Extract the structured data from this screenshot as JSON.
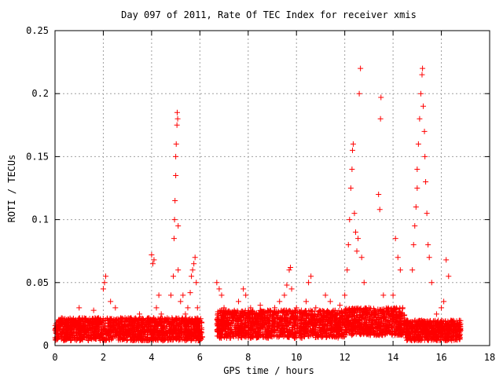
{
  "chart_data": {
    "type": "scatter",
    "title": "Day 097 of 2011, Rate Of TEC Index for receiver xmis",
    "xlabel": "GPS time / hours",
    "ylabel": "ROTI / TECUs",
    "xlim": [
      0,
      18
    ],
    "ylim": [
      0,
      0.25
    ],
    "x_ticks": [
      0,
      2,
      4,
      6,
      8,
      10,
      12,
      14,
      16,
      18
    ],
    "y_ticks": [
      0,
      0.05,
      0.1,
      0.15,
      0.2,
      0.25
    ],
    "x_tick_labels": [
      "0",
      "2",
      "4",
      "6",
      "8",
      "10",
      "12",
      "14",
      "16",
      "18"
    ],
    "y_tick_labels": [
      "0",
      "0.05",
      "0.1",
      "0.15",
      "0.2",
      "0.25"
    ],
    "grid": true,
    "marker": "+",
    "color": "#ff0000",
    "series": [
      {
        "points": [
          [
            0.1,
            0.012
          ],
          [
            0.3,
            0.01
          ],
          [
            0.5,
            0.013
          ],
          [
            0.7,
            0.011
          ],
          [
            0.9,
            0.018
          ],
          [
            1.0,
            0.03
          ],
          [
            1.2,
            0.015
          ],
          [
            1.5,
            0.02
          ],
          [
            1.6,
            0.028
          ],
          [
            1.8,
            0.022
          ],
          [
            1.9,
            0.012
          ],
          [
            2.0,
            0.045
          ],
          [
            2.05,
            0.05
          ],
          [
            2.1,
            0.055
          ],
          [
            2.2,
            0.02
          ],
          [
            2.3,
            0.035
          ],
          [
            2.5,
            0.03
          ],
          [
            2.7,
            0.015
          ],
          [
            2.9,
            0.022
          ],
          [
            3.1,
            0.012
          ],
          [
            3.3,
            0.018
          ],
          [
            3.5,
            0.025
          ],
          [
            3.7,
            0.015
          ],
          [
            3.9,
            0.02
          ],
          [
            4.0,
            0.072
          ],
          [
            4.05,
            0.065
          ],
          [
            4.1,
            0.068
          ],
          [
            4.2,
            0.03
          ],
          [
            4.3,
            0.04
          ],
          [
            4.4,
            0.025
          ],
          [
            4.6,
            0.02
          ],
          [
            4.8,
            0.04
          ],
          [
            4.9,
            0.055
          ],
          [
            4.93,
            0.085
          ],
          [
            4.95,
            0.1
          ],
          [
            4.97,
            0.115
          ],
          [
            5.0,
            0.135
          ],
          [
            5.0,
            0.15
          ],
          [
            5.02,
            0.16
          ],
          [
            5.05,
            0.175
          ],
          [
            5.06,
            0.185
          ],
          [
            5.08,
            0.18
          ],
          [
            5.1,
            0.095
          ],
          [
            5.1,
            0.06
          ],
          [
            5.2,
            0.035
          ],
          [
            5.3,
            0.04
          ],
          [
            5.4,
            0.025
          ],
          [
            5.5,
            0.03
          ],
          [
            5.6,
            0.042
          ],
          [
            5.65,
            0.055
          ],
          [
            5.7,
            0.06
          ],
          [
            5.75,
            0.065
          ],
          [
            5.8,
            0.07
          ],
          [
            5.85,
            0.05
          ],
          [
            5.9,
            0.03
          ],
          [
            6.0,
            0.02
          ],
          [
            6.7,
            0.05
          ],
          [
            6.8,
            0.045
          ],
          [
            6.9,
            0.04
          ],
          [
            7.0,
            0.03
          ],
          [
            7.2,
            0.025
          ],
          [
            7.4,
            0.02
          ],
          [
            7.6,
            0.035
          ],
          [
            7.8,
            0.045
          ],
          [
            7.9,
            0.04
          ],
          [
            8.1,
            0.03
          ],
          [
            8.3,
            0.025
          ],
          [
            8.5,
            0.032
          ],
          [
            8.7,
            0.02
          ],
          [
            8.9,
            0.028
          ],
          [
            9.1,
            0.03
          ],
          [
            9.3,
            0.035
          ],
          [
            9.5,
            0.04
          ],
          [
            9.6,
            0.048
          ],
          [
            9.7,
            0.06
          ],
          [
            9.75,
            0.062
          ],
          [
            9.8,
            0.045
          ],
          [
            10.0,
            0.03
          ],
          [
            10.2,
            0.028
          ],
          [
            10.4,
            0.035
          ],
          [
            10.5,
            0.05
          ],
          [
            10.6,
            0.055
          ],
          [
            10.8,
            0.03
          ],
          [
            11.0,
            0.025
          ],
          [
            11.2,
            0.04
          ],
          [
            11.4,
            0.035
          ],
          [
            11.6,
            0.028
          ],
          [
            11.8,
            0.032
          ],
          [
            12.0,
            0.04
          ],
          [
            12.1,
            0.06
          ],
          [
            12.15,
            0.08
          ],
          [
            12.2,
            0.1
          ],
          [
            12.25,
            0.125
          ],
          [
            12.3,
            0.14
          ],
          [
            12.32,
            0.155
          ],
          [
            12.35,
            0.16
          ],
          [
            12.4,
            0.105
          ],
          [
            12.45,
            0.09
          ],
          [
            12.5,
            0.075
          ],
          [
            12.55,
            0.085
          ],
          [
            12.6,
            0.2
          ],
          [
            12.65,
            0.22
          ],
          [
            12.7,
            0.07
          ],
          [
            12.8,
            0.05
          ],
          [
            13.0,
            0.03
          ],
          [
            13.2,
            0.025
          ],
          [
            13.4,
            0.12
          ],
          [
            13.45,
            0.108
          ],
          [
            13.48,
            0.18
          ],
          [
            13.5,
            0.197
          ],
          [
            13.6,
            0.04
          ],
          [
            13.8,
            0.03
          ],
          [
            14.0,
            0.04
          ],
          [
            14.1,
            0.085
          ],
          [
            14.2,
            0.07
          ],
          [
            14.3,
            0.06
          ],
          [
            14.4,
            0.03
          ],
          [
            14.6,
            0.02
          ],
          [
            14.8,
            0.06
          ],
          [
            14.85,
            0.08
          ],
          [
            14.9,
            0.095
          ],
          [
            14.95,
            0.11
          ],
          [
            15.0,
            0.125
          ],
          [
            15.0,
            0.14
          ],
          [
            15.05,
            0.16
          ],
          [
            15.1,
            0.18
          ],
          [
            15.15,
            0.2
          ],
          [
            15.2,
            0.215
          ],
          [
            15.22,
            0.22
          ],
          [
            15.25,
            0.19
          ],
          [
            15.3,
            0.17
          ],
          [
            15.32,
            0.15
          ],
          [
            15.35,
            0.13
          ],
          [
            15.4,
            0.105
          ],
          [
            15.45,
            0.08
          ],
          [
            15.5,
            0.07
          ],
          [
            15.6,
            0.05
          ],
          [
            15.8,
            0.025
          ],
          [
            16.0,
            0.03
          ],
          [
            16.1,
            0.035
          ],
          [
            16.2,
            0.068
          ],
          [
            16.3,
            0.055
          ],
          [
            16.4,
            0.02
          ],
          [
            16.6,
            0.015
          ],
          [
            16.8,
            0.012
          ]
        ]
      }
    ],
    "dense_band": [
      {
        "x_start": 0.0,
        "x_end": 6.1,
        "y_low": 0.004,
        "y_high": 0.022
      },
      {
        "x_start": 6.7,
        "x_end": 12.0,
        "y_low": 0.006,
        "y_high": 0.028
      },
      {
        "x_start": 12.0,
        "x_end": 14.5,
        "y_low": 0.008,
        "y_high": 0.03
      },
      {
        "x_start": 14.5,
        "x_end": 16.8,
        "y_low": 0.004,
        "y_high": 0.02
      }
    ]
  }
}
